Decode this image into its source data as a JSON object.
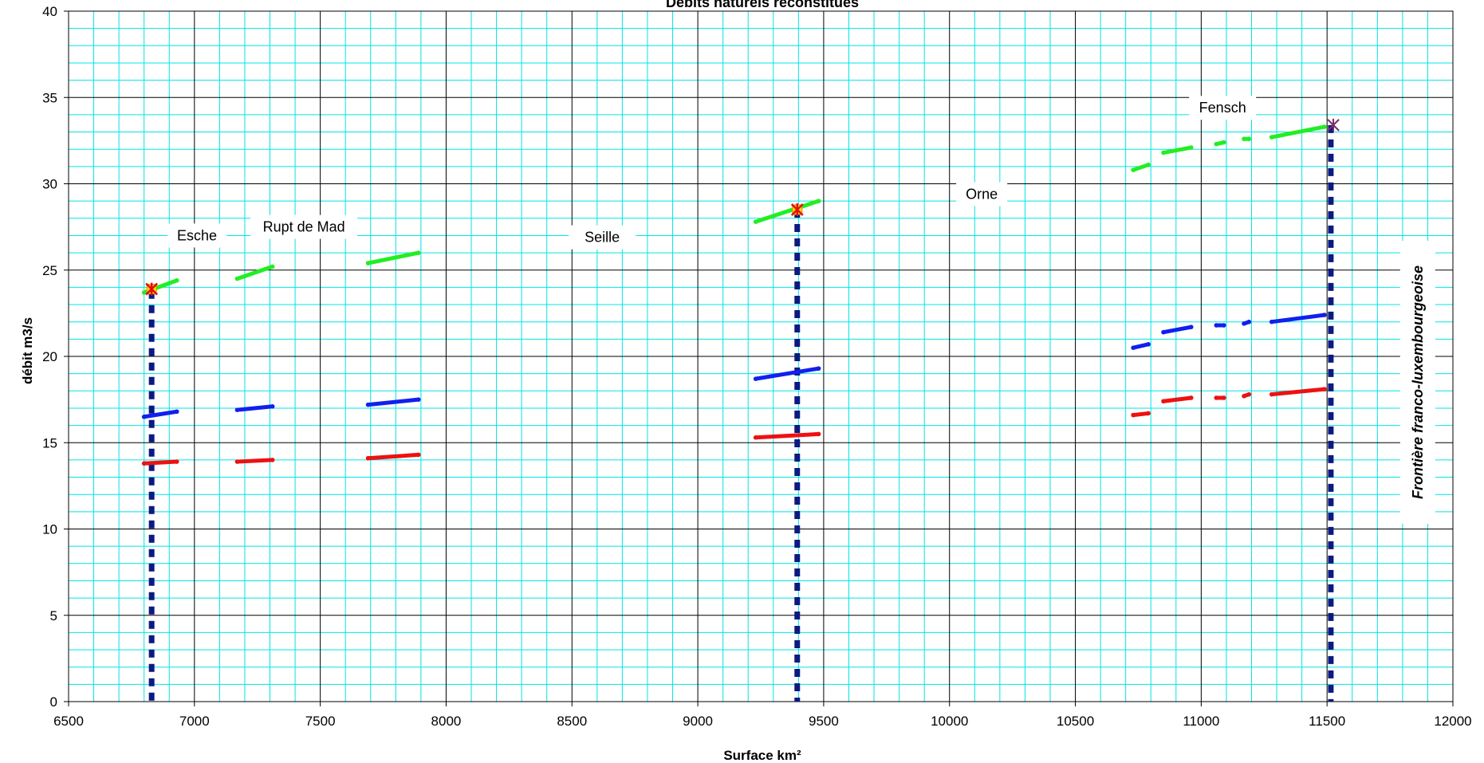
{
  "chart_data": {
    "type": "scatter",
    "title": "Débits naturels reconstitués",
    "xlabel": "Surface km²",
    "ylabel": "débit m3/s",
    "xlim": [
      6500,
      12000
    ],
    "ylim": [
      0,
      40
    ],
    "x_ticks": [
      6500,
      7000,
      7500,
      8000,
      8500,
      9000,
      9500,
      10000,
      10500,
      11000,
      11500,
      12000
    ],
    "y_ticks": [
      0,
      5,
      10,
      15,
      20,
      25,
      30,
      35,
      40
    ],
    "grid": true,
    "colors": {
      "background": "#ffffff",
      "grid_minor": "#00e5e5",
      "grid_major": "#000000",
      "green": "#22ee22",
      "blue": "#1020ee",
      "red": "#ee1111",
      "dashed": "#0a1a80"
    },
    "series": [
      {
        "color": "green",
        "segments": [
          [
            [
              6800,
              23.7
            ],
            [
              6930,
              24.4
            ]
          ],
          [
            [
              7170,
              24.5
            ],
            [
              7310,
              25.2
            ]
          ],
          [
            [
              7690,
              25.4
            ],
            [
              7890,
              26.0
            ]
          ],
          [
            [
              9230,
              27.8
            ],
            [
              9480,
              29.0
            ]
          ],
          [
            [
              10730,
              30.8
            ],
            [
              10790,
              31.1
            ]
          ],
          [
            [
              10850,
              31.8
            ],
            [
              10960,
              32.1
            ]
          ],
          [
            [
              11060,
              32.3
            ],
            [
              11090,
              32.4
            ]
          ],
          [
            [
              11170,
              32.6
            ],
            [
              11190,
              32.6
            ]
          ],
          [
            [
              11280,
              32.7
            ],
            [
              11490,
              33.3
            ]
          ]
        ]
      },
      {
        "color": "blue",
        "segments": [
          [
            [
              6800,
              16.5
            ],
            [
              6930,
              16.8
            ]
          ],
          [
            [
              7170,
              16.9
            ],
            [
              7310,
              17.1
            ]
          ],
          [
            [
              7690,
              17.2
            ],
            [
              7890,
              17.5
            ]
          ],
          [
            [
              9230,
              18.7
            ],
            [
              9480,
              19.3
            ]
          ],
          [
            [
              10730,
              20.5
            ],
            [
              10790,
              20.7
            ]
          ],
          [
            [
              10850,
              21.4
            ],
            [
              10960,
              21.7
            ]
          ],
          [
            [
              11060,
              21.8
            ],
            [
              11090,
              21.8
            ]
          ],
          [
            [
              11170,
              21.9
            ],
            [
              11190,
              22.0
            ]
          ],
          [
            [
              11280,
              22.0
            ],
            [
              11490,
              22.4
            ]
          ]
        ]
      },
      {
        "color": "red",
        "segments": [
          [
            [
              6800,
              13.8
            ],
            [
              6930,
              13.9
            ]
          ],
          [
            [
              7170,
              13.9
            ],
            [
              7310,
              14.0
            ]
          ],
          [
            [
              7690,
              14.1
            ],
            [
              7890,
              14.3
            ]
          ],
          [
            [
              9230,
              15.3
            ],
            [
              9480,
              15.5
            ]
          ],
          [
            [
              10730,
              16.6
            ],
            [
              10790,
              16.7
            ]
          ],
          [
            [
              10850,
              17.4
            ],
            [
              10960,
              17.6
            ]
          ],
          [
            [
              11060,
              17.6
            ],
            [
              11090,
              17.6
            ]
          ],
          [
            [
              11170,
              17.7
            ],
            [
              11190,
              17.8
            ]
          ],
          [
            [
              11280,
              17.8
            ],
            [
              11490,
              18.1
            ]
          ]
        ]
      }
    ],
    "dashed_lines": [
      {
        "x": 6830,
        "y_top": 23.8
      },
      {
        "x": 9395,
        "y_top": 28.5
      },
      {
        "x": 11515,
        "y_top": 33.4
      }
    ],
    "markers": [
      {
        "x": 6830,
        "y": 23.9,
        "type": "star"
      },
      {
        "x": 9395,
        "y": 28.5,
        "type": "star"
      },
      {
        "x": 11525,
        "y": 33.4,
        "type": "cross"
      }
    ],
    "annotations": [
      {
        "text": "Esche",
        "x": 7010,
        "y": 27.0
      },
      {
        "text": "Rupt de Mad",
        "x": 7435,
        "y": 27.5
      },
      {
        "text": "Seille",
        "x": 8620,
        "y": 26.9
      },
      {
        "text": "Orne",
        "x": 10128,
        "y": 29.4
      },
      {
        "text": "Fensch",
        "x": 11085,
        "y": 34.4
      },
      {
        "text": "Frontière franco-luxembourgeoise",
        "x": 11860,
        "y": 18.5,
        "vertical": true
      }
    ]
  }
}
